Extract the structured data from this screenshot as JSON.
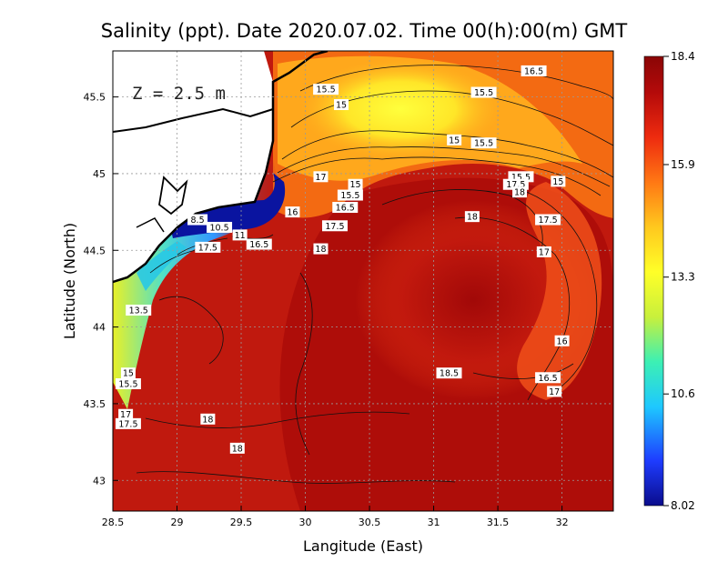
{
  "chart_data": {
    "type": "heatmap",
    "title": "Salinity (ppt). Date 2020.07.02. Time 00(h):00(m) GMT",
    "xlabel": "Langitude (East)",
    "ylabel": "Latitude (North)",
    "depth_label": "Z = 2.5 m",
    "xlim": [
      28.5,
      32.4
    ],
    "ylim": [
      42.8,
      45.8
    ],
    "x_ticks": [
      "28.5",
      "29",
      "29.5",
      "30",
      "30.5",
      "31",
      "31.5",
      "32"
    ],
    "x_tick_values": [
      28.5,
      29,
      29.5,
      30,
      30.5,
      31,
      31.5,
      32
    ],
    "y_ticks": [
      "43",
      "43.5",
      "44",
      "44.5",
      "45",
      "45.5"
    ],
    "y_tick_values": [
      43,
      43.5,
      44,
      44.5,
      45,
      45.5
    ],
    "grid": true,
    "colorbar": {
      "min": 8.02,
      "max": 18.4,
      "tick_labels": [
        "18.4",
        "15.9",
        "13.3",
        "10.6",
        "8.02"
      ],
      "tick_values": [
        18.4,
        15.9,
        13.3,
        10.6,
        8.02
      ],
      "colors": [
        "#0a0c8c",
        "#1e3cff",
        "#1ec8ff",
        "#3cf0b4",
        "#c8f03c",
        "#ffff28",
        "#ffc81e",
        "#ff7814",
        "#ee2b0f",
        "#b40a0a",
        "#8a0606"
      ]
    },
    "contour_labels": [
      {
        "text": "16.5",
        "lon": 31.78,
        "lat": 45.67
      },
      {
        "text": "15.5",
        "lon": 30.16,
        "lat": 45.55
      },
      {
        "text": "15.5",
        "lon": 31.39,
        "lat": 45.53
      },
      {
        "text": "15",
        "lon": 30.28,
        "lat": 45.45
      },
      {
        "text": "15",
        "lon": 31.16,
        "lat": 45.22
      },
      {
        "text": "15.5",
        "lon": 31.39,
        "lat": 45.2
      },
      {
        "text": "17",
        "lon": 30.12,
        "lat": 44.98
      },
      {
        "text": "15",
        "lon": 30.39,
        "lat": 44.93
      },
      {
        "text": "15.5",
        "lon": 30.35,
        "lat": 44.86
      },
      {
        "text": "15.5",
        "lon": 31.68,
        "lat": 44.98
      },
      {
        "text": "17.5",
        "lon": 31.64,
        "lat": 44.93
      },
      {
        "text": "18",
        "lon": 31.67,
        "lat": 44.88
      },
      {
        "text": "15",
        "lon": 31.97,
        "lat": 44.95
      },
      {
        "text": "16",
        "lon": 29.9,
        "lat": 44.75
      },
      {
        "text": "16.5",
        "lon": 30.31,
        "lat": 44.78
      },
      {
        "text": "18",
        "lon": 31.3,
        "lat": 44.72
      },
      {
        "text": "17.5",
        "lon": 31.89,
        "lat": 44.7
      },
      {
        "text": "8.5",
        "lon": 29.16,
        "lat": 44.7
      },
      {
        "text": "10.5",
        "lon": 29.33,
        "lat": 44.65
      },
      {
        "text": "17.5",
        "lon": 30.23,
        "lat": 44.66
      },
      {
        "text": "11",
        "lon": 29.49,
        "lat": 44.6
      },
      {
        "text": "16.5",
        "lon": 29.64,
        "lat": 44.54
      },
      {
        "text": "17.5",
        "lon": 29.24,
        "lat": 44.52
      },
      {
        "text": "18",
        "lon": 30.12,
        "lat": 44.51
      },
      {
        "text": "17",
        "lon": 31.86,
        "lat": 44.49
      },
      {
        "text": "13.5",
        "lon": 28.7,
        "lat": 44.11
      },
      {
        "text": "16",
        "lon": 32.0,
        "lat": 43.91
      },
      {
        "text": "15",
        "lon": 28.62,
        "lat": 43.7
      },
      {
        "text": "15.5",
        "lon": 28.62,
        "lat": 43.63
      },
      {
        "text": "18.5",
        "lon": 31.12,
        "lat": 43.7
      },
      {
        "text": "16.5",
        "lon": 31.89,
        "lat": 43.67
      },
      {
        "text": "17",
        "lon": 31.94,
        "lat": 43.58
      },
      {
        "text": "17",
        "lon": 28.6,
        "lat": 43.43
      },
      {
        "text": "17.5",
        "lon": 28.62,
        "lat": 43.37
      },
      {
        "text": "18",
        "lon": 29.24,
        "lat": 43.4
      },
      {
        "text": "18",
        "lon": 29.47,
        "lat": 43.21
      }
    ]
  }
}
